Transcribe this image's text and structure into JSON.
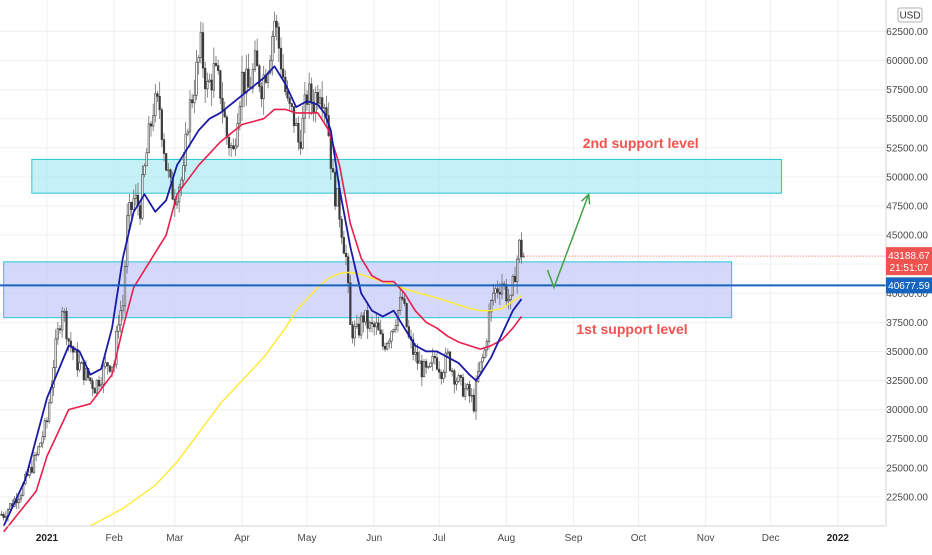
{
  "chart_data": {
    "type": "candlestick",
    "currency": "USD",
    "y_axis": {
      "min": 20000,
      "max": 65200,
      "ticks": [
        "22500.00",
        "25000.00",
        "27500.00",
        "30000.00",
        "32500.00",
        "35000.00",
        "37500.00",
        "40000.00",
        "42500.00",
        "45000.00",
        "47500.00",
        "50000.00",
        "52500.00",
        "55000.00",
        "57500.00",
        "60000.00",
        "62500.00"
      ],
      "grid": true
    },
    "x_axis": {
      "months": [
        {
          "label": "2021",
          "day": 0,
          "bold": true
        },
        {
          "label": "Feb",
          "day": 31
        },
        {
          "label": "Mar",
          "day": 59
        },
        {
          "label": "Apr",
          "day": 90
        },
        {
          "label": "May",
          "day": 120
        },
        {
          "label": "Jun",
          "day": 151
        },
        {
          "label": "Jul",
          "day": 181
        },
        {
          "label": "Aug",
          "day": 212
        },
        {
          "label": "Sep",
          "day": 243
        },
        {
          "label": "Oct",
          "day": 273
        },
        {
          "label": "Nov",
          "day": 304
        },
        {
          "label": "Dec",
          "day": 334
        },
        {
          "label": "2022",
          "day": 365,
          "bold": true
        }
      ]
    },
    "price_path": [
      [
        -20,
        21000
      ],
      [
        -12,
        23000
      ],
      [
        -5,
        26000
      ],
      [
        0,
        29000
      ],
      [
        3,
        34000
      ],
      [
        7,
        39000
      ],
      [
        10,
        36000
      ],
      [
        14,
        34000
      ],
      [
        18,
        33000
      ],
      [
        22,
        32000
      ],
      [
        25,
        33000
      ],
      [
        28,
        34000
      ],
      [
        31,
        34000
      ],
      [
        33,
        38000
      ],
      [
        35,
        39000
      ],
      [
        37,
        46000
      ],
      [
        40,
        48000
      ],
      [
        43,
        47500
      ],
      [
        46,
        52000
      ],
      [
        49,
        56000
      ],
      [
        52,
        56000
      ],
      [
        55,
        51000
      ],
      [
        57,
        49000
      ],
      [
        59,
        48500
      ],
      [
        61,
        49500
      ],
      [
        63,
        50000
      ],
      [
        65,
        55000
      ],
      [
        68,
        58000
      ],
      [
        71,
        61000
      ],
      [
        74,
        57500
      ],
      [
        77,
        59000
      ],
      [
        80,
        57500
      ],
      [
        83,
        53500
      ],
      [
        86,
        52000
      ],
      [
        88,
        56000
      ],
      [
        90,
        58500
      ],
      [
        93,
        57500
      ],
      [
        96,
        59500
      ],
      [
        99,
        58000
      ],
      [
        102,
        60000
      ],
      [
        105,
        63500
      ],
      [
        108,
        60000
      ],
      [
        111,
        56000
      ],
      [
        114,
        55000
      ],
      [
        116,
        53000
      ],
      [
        118,
        54500
      ],
      [
        120,
        57000
      ],
      [
        123,
        56500
      ],
      [
        126,
        58000
      ],
      [
        129,
        56000
      ],
      [
        132,
        49500
      ],
      [
        135,
        47000
      ],
      [
        138,
        43000
      ],
      [
        140,
        37000
      ],
      [
        143,
        36500
      ],
      [
        146,
        38000
      ],
      [
        149,
        37000
      ],
      [
        152,
        37000
      ],
      [
        155,
        35500
      ],
      [
        158,
        36500
      ],
      [
        161,
        38000
      ],
      [
        164,
        39500
      ],
      [
        167,
        36000
      ],
      [
        170,
        34500
      ],
      [
        173,
        33500
      ],
      [
        176,
        33000
      ],
      [
        179,
        34500
      ],
      [
        182,
        33500
      ],
      [
        185,
        34500
      ],
      [
        188,
        33000
      ],
      [
        191,
        32000
      ],
      [
        194,
        31500
      ],
      [
        197,
        30500
      ],
      [
        199,
        33000
      ],
      [
        202,
        35000
      ],
      [
        204,
        38000
      ],
      [
        206,
        40000
      ],
      [
        208,
        40500
      ],
      [
        210,
        41000
      ],
      [
        212,
        40000
      ],
      [
        214,
        39000
      ],
      [
        216,
        42000
      ],
      [
        218,
        44000
      ],
      [
        220,
        43188
      ]
    ],
    "ma_blue": [
      [
        -20,
        20000
      ],
      [
        -10,
        24000
      ],
      [
        0,
        31000
      ],
      [
        10,
        35500
      ],
      [
        15,
        35000
      ],
      [
        20,
        33000
      ],
      [
        25,
        33500
      ],
      [
        30,
        37000
      ],
      [
        35,
        43000
      ],
      [
        40,
        47000
      ],
      [
        45,
        48500
      ],
      [
        50,
        47000
      ],
      [
        55,
        48000
      ],
      [
        60,
        51000
      ],
      [
        70,
        54000
      ],
      [
        75,
        55000
      ],
      [
        80,
        55500
      ],
      [
        90,
        57000
      ],
      [
        100,
        58500
      ],
      [
        105,
        59500
      ],
      [
        110,
        58000
      ],
      [
        115,
        56000
      ],
      [
        120,
        56500
      ],
      [
        125,
        56200
      ],
      [
        128,
        55500
      ],
      [
        131,
        54000
      ],
      [
        135,
        49000
      ],
      [
        140,
        44000
      ],
      [
        145,
        40000
      ],
      [
        150,
        38500
      ],
      [
        155,
        38000
      ],
      [
        160,
        38500
      ],
      [
        165,
        37000
      ],
      [
        170,
        35500
      ],
      [
        175,
        35000
      ],
      [
        180,
        35000
      ],
      [
        185,
        34500
      ],
      [
        190,
        34000
      ],
      [
        195,
        33000
      ],
      [
        198,
        32500
      ],
      [
        200,
        33000
      ],
      [
        205,
        34500
      ],
      [
        210,
        36500
      ],
      [
        215,
        38500
      ],
      [
        219,
        39500
      ]
    ],
    "ma_red": [
      [
        -20,
        19500
      ],
      [
        -5,
        23000
      ],
      [
        0,
        26000
      ],
      [
        10,
        30000
      ],
      [
        20,
        30500
      ],
      [
        30,
        33000
      ],
      [
        35,
        37000
      ],
      [
        40,
        40500
      ],
      [
        45,
        42000
      ],
      [
        55,
        45000
      ],
      [
        60,
        48500
      ],
      [
        70,
        51000
      ],
      [
        80,
        53000
      ],
      [
        90,
        54500
      ],
      [
        100,
        55000
      ],
      [
        105,
        55800
      ],
      [
        110,
        55800
      ],
      [
        115,
        55500
      ],
      [
        120,
        55500
      ],
      [
        125,
        55500
      ],
      [
        130,
        54000
      ],
      [
        135,
        51000
      ],
      [
        140,
        46000
      ],
      [
        145,
        43000
      ],
      [
        150,
        41500
      ],
      [
        155,
        41000
      ],
      [
        160,
        41000
      ],
      [
        165,
        40000
      ],
      [
        170,
        38500
      ],
      [
        175,
        37500
      ],
      [
        180,
        37000
      ],
      [
        185,
        36300
      ],
      [
        190,
        35800
      ],
      [
        195,
        35500
      ],
      [
        200,
        35200
      ],
      [
        205,
        35500
      ],
      [
        210,
        36000
      ],
      [
        215,
        37000
      ],
      [
        219,
        38000
      ]
    ],
    "ma_yellow": [
      [
        20,
        20000
      ],
      [
        35,
        21500
      ],
      [
        50,
        23500
      ],
      [
        60,
        25500
      ],
      [
        70,
        28000
      ],
      [
        80,
        30500
      ],
      [
        90,
        32500
      ],
      [
        100,
        34500
      ],
      [
        110,
        37000
      ],
      [
        115,
        38500
      ],
      [
        120,
        39500
      ],
      [
        125,
        40500
      ],
      [
        130,
        41300
      ],
      [
        135,
        41700
      ],
      [
        140,
        41800
      ],
      [
        145,
        41600
      ],
      [
        150,
        41300
      ],
      [
        155,
        41000
      ],
      [
        160,
        40700
      ],
      [
        170,
        40100
      ],
      [
        180,
        39600
      ],
      [
        185,
        39300
      ],
      [
        190,
        39000
      ],
      [
        195,
        38700
      ],
      [
        200,
        38500
      ],
      [
        205,
        38500
      ],
      [
        210,
        38700
      ],
      [
        215,
        39300
      ],
      [
        219,
        39800
      ]
    ],
    "zones": [
      {
        "label": "2nd support level",
        "x0": -7,
        "x1": 339,
        "y0": 48600,
        "y1": 51500,
        "fill": "#b2ebf2"
      },
      {
        "label": "1st support level",
        "x0": -20,
        "x1": 316,
        "y0": 37900,
        "y1": 42700,
        "fill": "#c5cbfa"
      }
    ],
    "horizontal_line": {
      "value": 40677.59,
      "label": "40677.59",
      "color": "#1565c0"
    },
    "last_price": {
      "value": 43188.67,
      "label": "43188.67",
      "countdown": "21:51:07",
      "color": "#ef5350"
    },
    "forecast_arrow": {
      "points": [
        [
          231,
          42000
        ],
        [
          234,
          40500
        ],
        [
          250,
          48500
        ]
      ],
      "color": "#43a047"
    },
    "annotations": [
      {
        "text": "2nd support level",
        "day": 274,
        "price": 52500
      },
      {
        "text": "1st support level",
        "day": 270,
        "price": 36500
      }
    ]
  },
  "ui": {
    "currency_button": "USD"
  }
}
